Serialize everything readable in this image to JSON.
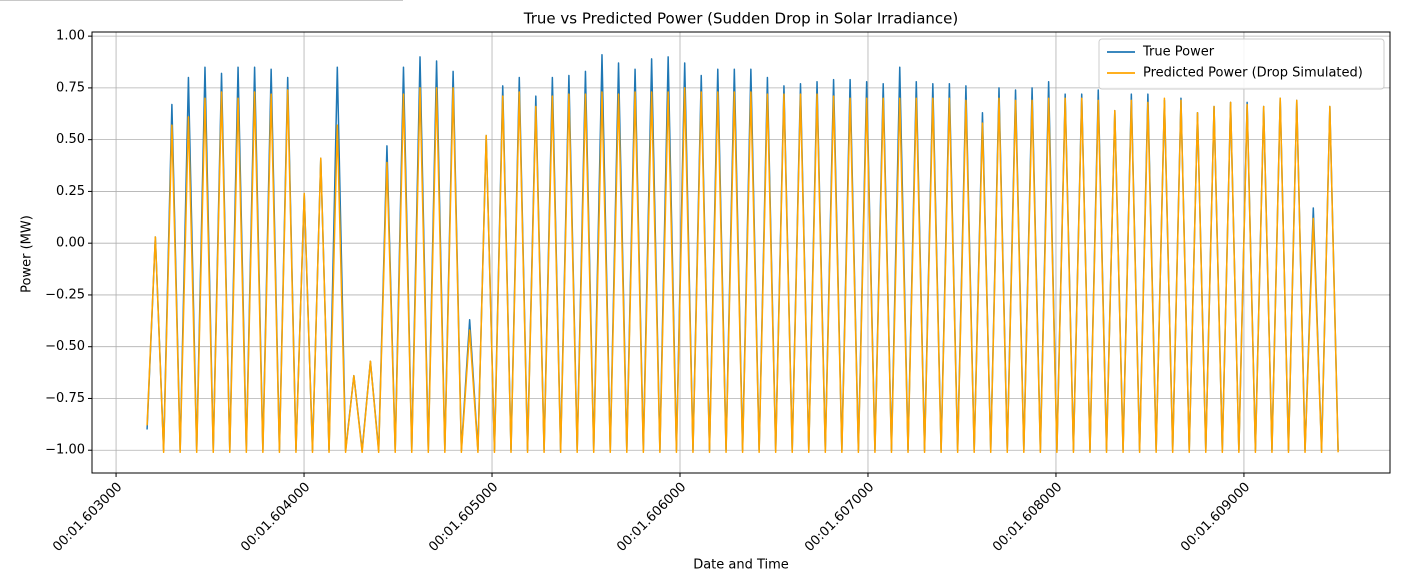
{
  "chart_data": {
    "type": "line",
    "title": "True vs Predicted Power (Sudden Drop in Solar Irradiance)",
    "xlabel": "Date and Time",
    "ylabel": "Power (MW)",
    "xlim": [
      1602872,
      1609777
    ],
    "ylim": [
      -1.11,
      1.02
    ],
    "xticks": [
      {
        "value": 1603000,
        "label": "00:01.603000"
      },
      {
        "value": 1604000,
        "label": "00:01.604000"
      },
      {
        "value": 1605000,
        "label": "00:01.605000"
      },
      {
        "value": 1606000,
        "label": "00:01.606000"
      },
      {
        "value": 1607000,
        "label": "00:01.607000"
      },
      {
        "value": 1608000,
        "label": "00:01.608000"
      },
      {
        "value": 1609000,
        "label": "00:01.609000"
      }
    ],
    "yticks": [
      {
        "value": -1,
        "label": "−1.00"
      },
      {
        "value": -0.75,
        "label": "−0.75"
      },
      {
        "value": -0.5,
        "label": "−0.50"
      },
      {
        "value": -0.25,
        "label": "−0.25"
      },
      {
        "value": 0,
        "label": "0.00"
      },
      {
        "value": 0.25,
        "label": "0.25"
      },
      {
        "value": 0.5,
        "label": "0.50"
      },
      {
        "value": 0.75,
        "label": "0.75"
      },
      {
        "value": 1,
        "label": "1.00"
      }
    ],
    "grid": true,
    "legend": "upper right",
    "x": [
      1603165,
      1603209,
      1603253,
      1603297,
      1603341,
      1603385,
      1603429,
      1603473,
      1603517,
      1603561,
      1603605,
      1603649,
      1603693,
      1603737,
      1603781,
      1603825,
      1603869,
      1603913,
      1603957,
      1604001,
      1604045,
      1604089,
      1604133,
      1604177,
      1604221,
      1604265,
      1604309,
      1604353,
      1604397,
      1604441,
      1604485,
      1604529,
      1604573,
      1604617,
      1604661,
      1604705,
      1604749,
      1604793,
      1604837,
      1604881,
      1604925,
      1604969,
      1605013,
      1605057,
      1605101,
      1605145,
      1605189,
      1605233,
      1605277,
      1605321,
      1605365,
      1605409,
      1605453,
      1605497,
      1605541,
      1605585,
      1605629,
      1605673,
      1605717,
      1605761,
      1605805,
      1605849,
      1605893,
      1605937,
      1605981,
      1606025,
      1606069,
      1606113,
      1606157,
      1606201,
      1606245,
      1606289,
      1606333,
      1606377,
      1606421,
      1606465,
      1606509,
      1606553,
      1606597,
      1606641,
      1606685,
      1606729,
      1606773,
      1606817,
      1606861,
      1606905,
      1606949,
      1606993,
      1607037,
      1607081,
      1607125,
      1607169,
      1607213,
      1607257,
      1607301,
      1607345,
      1607389,
      1607433,
      1607477,
      1607521,
      1607565,
      1607609,
      1607653,
      1607697,
      1607741,
      1607785,
      1607829,
      1607873,
      1607917,
      1607961,
      1608005,
      1608049,
      1608093,
      1608137,
      1608181,
      1608225,
      1608269,
      1608313,
      1608357,
      1608401,
      1608445,
      1608489,
      1608533,
      1608577,
      1608621,
      1608665,
      1608709,
      1608753,
      1608797,
      1608841,
      1608885,
      1608929,
      1608973,
      1609017,
      1609061,
      1609105,
      1609149,
      1609193,
      1609237,
      1609281,
      1609325,
      1609369,
      1609413,
      1609457,
      1609501
    ],
    "series": [
      {
        "name": "True Power",
        "color": "#1f77b4",
        "values": [
          -0.9,
          0.03,
          -1,
          0.67,
          -1,
          0.8,
          -1,
          0.85,
          -1,
          0.82,
          -1,
          0.85,
          -1,
          0.85,
          -1,
          0.84,
          -1,
          0.8,
          -1,
          0.24,
          -1,
          0.41,
          -1,
          0.85,
          -1,
          -0.64,
          -1,
          -0.57,
          -1,
          0.47,
          -1,
          0.85,
          -1,
          0.9,
          -1,
          0.88,
          -1,
          0.83,
          -1,
          -0.37,
          -1,
          0.52,
          -1,
          0.76,
          -1,
          0.8,
          -1,
          0.71,
          -1,
          0.8,
          -1,
          0.81,
          -1,
          0.83,
          -1,
          0.91,
          -1,
          0.87,
          -1,
          0.84,
          -1,
          0.89,
          -1,
          0.9,
          -1,
          0.87,
          -1,
          0.81,
          -1,
          0.84,
          -1,
          0.84,
          -1,
          0.84,
          -1,
          0.8,
          -1,
          0.76,
          -1,
          0.77,
          -1,
          0.78,
          -1,
          0.79,
          -1,
          0.79,
          -1,
          0.78,
          -1,
          0.77,
          -1,
          0.85,
          -1,
          0.78,
          -1,
          0.77,
          -1,
          0.77,
          -1,
          0.76,
          -1,
          0.63,
          -1,
          0.75,
          -1,
          0.74,
          -1,
          0.75,
          -1,
          0.78,
          -1,
          0.72,
          -1,
          0.72,
          -1,
          0.74,
          -1,
          0.64,
          -1,
          0.72,
          -1,
          0.72,
          -1,
          0.69,
          -1,
          0.7,
          -1,
          0.63,
          -1,
          0.66,
          -1,
          0.68,
          -1,
          0.68,
          -1,
          0.66,
          -1,
          0.7,
          -1,
          0.69,
          -1,
          0.17,
          -1,
          0.66,
          -1
        ]
      },
      {
        "name": "Predicted Power (Drop Simulated)",
        "color": "#ffa500",
        "values": [
          -0.88,
          0.03,
          -1.01,
          0.57,
          -1.01,
          0.61,
          -1.01,
          0.7,
          -1.01,
          0.73,
          -1.01,
          0.7,
          -1.01,
          0.73,
          -1.01,
          0.72,
          -1.01,
          0.74,
          -1.01,
          0.24,
          -1.01,
          0.41,
          -1.01,
          0.57,
          -1.01,
          -0.64,
          -1.01,
          -0.57,
          -1.01,
          0.39,
          -1.01,
          0.72,
          -1.01,
          0.75,
          -1.01,
          0.75,
          -1.01,
          0.75,
          -1.01,
          -0.42,
          -1.01,
          0.52,
          -1.01,
          0.71,
          -1.01,
          0.73,
          -1.01,
          0.66,
          -1.01,
          0.71,
          -1.01,
          0.72,
          -1.01,
          0.72,
          -1.01,
          0.73,
          -1.01,
          0.72,
          -1.01,
          0.73,
          -1.01,
          0.73,
          -1.01,
          0.73,
          -1.01,
          0.75,
          -1.01,
          0.73,
          -1.01,
          0.73,
          -1.01,
          0.73,
          -1.01,
          0.73,
          -1.01,
          0.72,
          -1.01,
          0.72,
          -1.01,
          0.72,
          -1.01,
          0.72,
          -1.01,
          0.71,
          -1.01,
          0.7,
          -1.01,
          0.7,
          -1.01,
          0.7,
          -1.01,
          0.7,
          -1.01,
          0.7,
          -1.01,
          0.7,
          -1.01,
          0.7,
          -1.01,
          0.69,
          -1.01,
          0.58,
          -1.01,
          0.7,
          -1.01,
          0.69,
          -1.01,
          0.69,
          -1.01,
          0.7,
          -1.01,
          0.7,
          -1.01,
          0.7,
          -1.01,
          0.69,
          -1.01,
          0.64,
          -1.01,
          0.69,
          -1.01,
          0.68,
          -1.01,
          0.7,
          -1.01,
          0.69,
          -1.01,
          0.63,
          -1.01,
          0.66,
          -1.01,
          0.68,
          -1.01,
          0.67,
          -1.01,
          0.66,
          -1.01,
          0.7,
          -1.01,
          0.69,
          -1.01,
          0.12,
          -1.01,
          0.66,
          -1.01
        ]
      }
    ]
  }
}
